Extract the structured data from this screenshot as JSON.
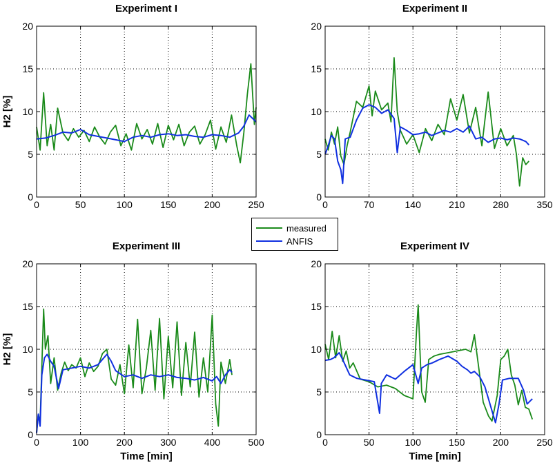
{
  "colors": {
    "measured": "#1a8a1a",
    "anfis": "#1030e0"
  },
  "legend": {
    "placement": "center",
    "items": [
      "measured",
      "ANFIS"
    ]
  },
  "chart_data": [
    {
      "type": "line",
      "title": "Experiment I",
      "xlabel": "",
      "ylabel": "H2 [%]",
      "xlim": [
        0,
        250
      ],
      "ylim": [
        0,
        20
      ],
      "xticks": [
        0,
        50,
        100,
        150,
        200,
        250
      ],
      "yticks": [
        0,
        5,
        10,
        15,
        20
      ],
      "grid": true,
      "series": [
        {
          "name": "measured",
          "x": [
            0,
            4,
            8,
            12,
            16,
            20,
            24,
            30,
            36,
            42,
            48,
            54,
            60,
            66,
            72,
            78,
            84,
            90,
            96,
            102,
            108,
            114,
            120,
            126,
            132,
            138,
            144,
            150,
            156,
            162,
            168,
            174,
            180,
            186,
            192,
            198,
            204,
            210,
            216,
            222,
            228,
            232,
            236,
            240,
            244,
            248,
            250
          ],
          "y": [
            8.2,
            5.5,
            12.2,
            6.0,
            8.5,
            5.5,
            10.4,
            7.5,
            6.6,
            8.0,
            7.0,
            7.8,
            6.5,
            8.2,
            7.0,
            6.2,
            7.6,
            8.4,
            6.0,
            7.4,
            5.5,
            8.6,
            6.8,
            7.9,
            6.2,
            8.6,
            5.8,
            8.4,
            6.7,
            8.5,
            6.0,
            7.6,
            8.3,
            6.2,
            7.3,
            9.0,
            5.6,
            8.2,
            6.4,
            9.6,
            6.0,
            4.0,
            7.5,
            12.0,
            15.6,
            8.5,
            10.5
          ]
        },
        {
          "name": "ANFIS",
          "x": [
            0,
            10,
            20,
            30,
            40,
            50,
            60,
            70,
            80,
            90,
            100,
            110,
            120,
            130,
            140,
            150,
            160,
            170,
            180,
            190,
            200,
            210,
            220,
            230,
            236,
            242,
            246,
            250
          ],
          "y": [
            6.8,
            6.9,
            7.2,
            7.6,
            7.5,
            7.9,
            7.3,
            7.1,
            6.9,
            6.7,
            6.5,
            7.0,
            7.2,
            7.0,
            7.3,
            7.4,
            7.2,
            7.3,
            7.1,
            7.0,
            7.3,
            7.2,
            7.0,
            7.5,
            8.3,
            9.6,
            9.2,
            8.8
          ]
        }
      ]
    },
    {
      "type": "line",
      "title": "Experiment II",
      "xlabel": "",
      "ylabel": "",
      "xlim": [
        0,
        350
      ],
      "ylim": [
        0,
        20
      ],
      "xticks": [
        0,
        70,
        140,
        210,
        280,
        350
      ],
      "yticks": [
        0,
        5,
        10,
        15,
        20
      ],
      "grid": true,
      "series": [
        {
          "name": "measured",
          "x": [
            0,
            5,
            10,
            15,
            20,
            25,
            30,
            35,
            40,
            50,
            60,
            70,
            75,
            80,
            90,
            100,
            105,
            110,
            115,
            120,
            130,
            140,
            150,
            160,
            170,
            180,
            190,
            200,
            210,
            220,
            230,
            240,
            250,
            260,
            270,
            280,
            290,
            300,
            305,
            310,
            315,
            320,
            325
          ],
          "y": [
            6.8,
            5.5,
            7.6,
            6.2,
            8.2,
            4.8,
            3.8,
            6.0,
            7.6,
            11.2,
            10.5,
            13.0,
            9.5,
            12.4,
            10.2,
            11.0,
            8.8,
            16.3,
            10.0,
            7.8,
            6.2,
            7.3,
            5.2,
            8.0,
            6.6,
            8.5,
            7.3,
            11.5,
            9.0,
            12.0,
            7.5,
            10.5,
            6.0,
            12.3,
            5.7,
            8.0,
            6.0,
            7.2,
            5.0,
            1.3,
            4.6,
            3.8,
            4.2
          ]
        },
        {
          "name": "ANFIS",
          "x": [
            0,
            5,
            10,
            15,
            20,
            25,
            28,
            32,
            40,
            50,
            60,
            70,
            80,
            90,
            100,
            110,
            115,
            120,
            130,
            140,
            150,
            160,
            170,
            180,
            190,
            200,
            210,
            220,
            230,
            240,
            250,
            260,
            270,
            280,
            290,
            300,
            310,
            320,
            325
          ],
          "y": [
            5.0,
            6.0,
            7.2,
            6.8,
            4.2,
            3.2,
            1.6,
            6.8,
            7.0,
            9.0,
            10.4,
            10.8,
            10.5,
            9.8,
            10.2,
            9.2,
            5.2,
            8.2,
            7.8,
            7.3,
            7.4,
            7.6,
            7.2,
            7.5,
            7.8,
            7.6,
            8.0,
            7.6,
            8.3,
            6.8,
            7.0,
            6.4,
            6.8,
            6.9,
            6.7,
            6.9,
            6.8,
            6.5,
            6.1
          ]
        }
      ]
    },
    {
      "type": "line",
      "title": "Experiment III",
      "xlabel": "Time [min]",
      "ylabel": "H2 [%]",
      "xlim": [
        0,
        500
      ],
      "ylim": [
        0,
        20
      ],
      "xticks": [
        0,
        100,
        200,
        300,
        400,
        500
      ],
      "yticks": [
        0,
        5,
        10,
        15,
        20
      ],
      "grid": true,
      "series": [
        {
          "name": "measured",
          "x": [
            0,
            4,
            8,
            12,
            16,
            20,
            26,
            32,
            40,
            48,
            56,
            64,
            72,
            80,
            90,
            100,
            110,
            120,
            130,
            140,
            150,
            160,
            170,
            180,
            190,
            200,
            210,
            220,
            230,
            240,
            250,
            260,
            270,
            280,
            290,
            300,
            310,
            320,
            330,
            340,
            350,
            360,
            370,
            380,
            390,
            400,
            408,
            414,
            420,
            430,
            440,
            445
          ],
          "y": [
            0.2,
            2.4,
            1.5,
            8.0,
            14.7,
            10.0,
            11.6,
            6.0,
            9.0,
            5.2,
            7.2,
            8.5,
            7.5,
            8.2,
            7.8,
            9.0,
            6.8,
            8.4,
            7.4,
            8.0,
            9.5,
            10.0,
            6.5,
            5.8,
            8.2,
            4.8,
            10.5,
            5.5,
            13.5,
            4.8,
            7.8,
            12.2,
            5.2,
            13.6,
            4.2,
            11.5,
            5.5,
            13.2,
            4.6,
            10.8,
            5.6,
            12.0,
            4.4,
            9.0,
            5.0,
            14.0,
            3.6,
            1.0,
            8.5,
            6.0,
            8.8,
            7.0
          ]
        },
        {
          "name": "ANFIS",
          "x": [
            0,
            4,
            8,
            12,
            18,
            24,
            32,
            40,
            50,
            60,
            80,
            100,
            120,
            140,
            160,
            170,
            180,
            200,
            220,
            240,
            260,
            280,
            300,
            320,
            340,
            360,
            380,
            400,
            410,
            420,
            430,
            440,
            445
          ],
          "y": [
            0.2,
            2.4,
            1.0,
            7.0,
            9.0,
            9.4,
            8.6,
            8.0,
            5.4,
            7.6,
            7.8,
            8.0,
            7.8,
            8.2,
            9.4,
            8.6,
            7.5,
            6.8,
            7.0,
            6.6,
            7.0,
            6.8,
            7.0,
            6.7,
            6.6,
            6.4,
            6.7,
            6.3,
            6.8,
            6.0,
            7.0,
            7.6,
            7.3
          ]
        }
      ]
    },
    {
      "type": "line",
      "title": "Experiment IV",
      "xlabel": "Time [min]",
      "ylabel": "",
      "xlim": [
        0,
        250
      ],
      "ylim": [
        0,
        20
      ],
      "xticks": [
        0,
        50,
        100,
        150,
        200,
        250
      ],
      "yticks": [
        0,
        5,
        10,
        15,
        20
      ],
      "grid": true,
      "series": [
        {
          "name": "measured",
          "x": [
            0,
            4,
            8,
            12,
            16,
            20,
            24,
            28,
            32,
            40,
            50,
            60,
            70,
            80,
            90,
            100,
            104,
            106,
            108,
            110,
            114,
            118,
            124,
            130,
            140,
            150,
            160,
            166,
            170,
            176,
            180,
            186,
            190,
            196,
            200,
            204,
            208,
            212,
            216,
            220,
            224,
            228,
            232,
            236
          ],
          "y": [
            10.6,
            8.8,
            12.1,
            9.0,
            11.6,
            8.6,
            9.8,
            7.8,
            8.4,
            6.5,
            6.2,
            5.6,
            5.8,
            5.4,
            4.6,
            4.2,
            12.0,
            15.2,
            9.8,
            5.0,
            3.8,
            8.8,
            9.2,
            9.4,
            9.6,
            9.8,
            10.0,
            9.7,
            11.7,
            7.0,
            3.8,
            2.2,
            1.6,
            4.6,
            8.8,
            9.2,
            10.0,
            7.0,
            5.8,
            3.5,
            5.2,
            3.2,
            3.0,
            1.8
          ]
        },
        {
          "name": "ANFIS",
          "x": [
            0,
            6,
            10,
            16,
            20,
            28,
            36,
            46,
            56,
            62,
            64,
            70,
            80,
            90,
            100,
            106,
            110,
            116,
            122,
            130,
            140,
            150,
            156,
            162,
            166,
            170,
            176,
            182,
            186,
            190,
            194,
            198,
            202,
            210,
            220,
            226,
            230,
            236
          ],
          "y": [
            8.7,
            8.8,
            9.0,
            9.6,
            8.8,
            7.0,
            6.6,
            6.4,
            6.2,
            2.5,
            6.0,
            7.0,
            6.5,
            7.4,
            8.2,
            6.0,
            7.8,
            8.2,
            8.4,
            8.8,
            9.2,
            8.6,
            8.0,
            7.6,
            7.2,
            7.4,
            6.8,
            5.6,
            4.2,
            2.8,
            1.4,
            3.6,
            6.4,
            6.6,
            6.6,
            5.2,
            3.6,
            4.2
          ]
        }
      ]
    }
  ]
}
